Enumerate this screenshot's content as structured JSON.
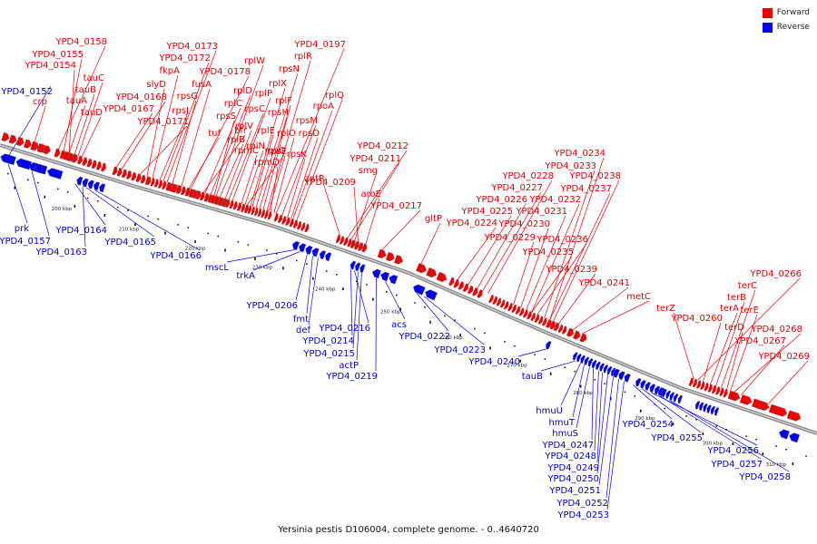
{
  "caption": "Yersinia pestis D106004, complete genome. - 0..4640720",
  "legend": {
    "forward_label": "Forward",
    "reverse_label": "Reverse",
    "forward_color": "#ee0000",
    "reverse_color": "#0000ee"
  },
  "tick_labels": [
    "200 kbp",
    "210 kbp",
    "220 kbp",
    "230 kbp",
    "240 kbp",
    "250 kbp",
    "260 kbp",
    "270 kbp",
    "280 kbp",
    "290 kbp",
    "300 kbp",
    "310 kbp"
  ],
  "forward_genes": [
    "YPD4_0158",
    "YPD4_0155",
    "YPD4_0154",
    "crp",
    "tauC",
    "tauB",
    "tauA",
    "tauD",
    "YPD4_0168",
    "YPD4_0167",
    "slyD",
    "fkpA",
    "YPD4_0173",
    "YPD4_0172",
    "YPD4_0171",
    "rpsG",
    "rpsJ",
    "fusA",
    "tuf",
    "YPD4_0178",
    "bfr",
    "rplC",
    "rplD",
    "rplW",
    "rplB",
    "rpsS",
    "rplV",
    "rpsC",
    "rplP",
    "rpmC",
    "rpsQ",
    "rplN",
    "rplX",
    "rplE",
    "rpsN",
    "rpsH",
    "rplF",
    "rplR",
    "rpsE",
    "rpmD",
    "rplO",
    "YPD4_0197",
    "rpsM",
    "rpsK",
    "rpsD",
    "rpoA",
    "rplQ",
    "zntR",
    "YPD4_0212",
    "YPD4_0211",
    "smg",
    "YPD4_0209",
    "aroE",
    "YPD4_0217",
    "gltP",
    "YPD4_0234",
    "YPD4_0233",
    "YPD4_0228",
    "YPD4_0238",
    "YPD4_0227",
    "YPD4_0237",
    "YPD4_0226",
    "YPD4_0232",
    "YPD4_0225",
    "YPD4_0231",
    "YPD4_0224",
    "YPD4_0230",
    "YPD4_0229",
    "YPD4_0236",
    "YPD4_0235",
    "YPD4_0239",
    "YPD4_0241",
    "metC",
    "YPD4_0266",
    "terC",
    "terB",
    "terA",
    "terZ",
    "YPD4_0260",
    "terD",
    "terE",
    "YPD4_0268",
    "YPD4_0267",
    "YPD4_0269"
  ],
  "reverse_genes": [
    "YPD4_0152",
    "prk",
    "YPD4_0157",
    "YPD4_0164",
    "YPD4_0163",
    "YPD4_0165",
    "YPD4_0166",
    "mscL",
    "trkA",
    "YPD4_0206",
    "fmt",
    "def",
    "YPD4_0216",
    "YPD4_0214",
    "YPD4_0215",
    "actP",
    "YPD4_0219",
    "acs",
    "YPD4_0222",
    "YPD4_0223",
    "YPD4_0240",
    "tauB",
    "hmuU",
    "hmuT",
    "hmuS",
    "YPD4_0247",
    "YPD4_0248",
    "YPD4_0249",
    "YPD4_0250",
    "YPD4_0251",
    "YPD4_0252",
    "YPD4_0253",
    "YPD4_0254",
    "YPD4_0255",
    "YPD4_0256",
    "YPD4_0257",
    "YPD4_0258"
  ]
}
